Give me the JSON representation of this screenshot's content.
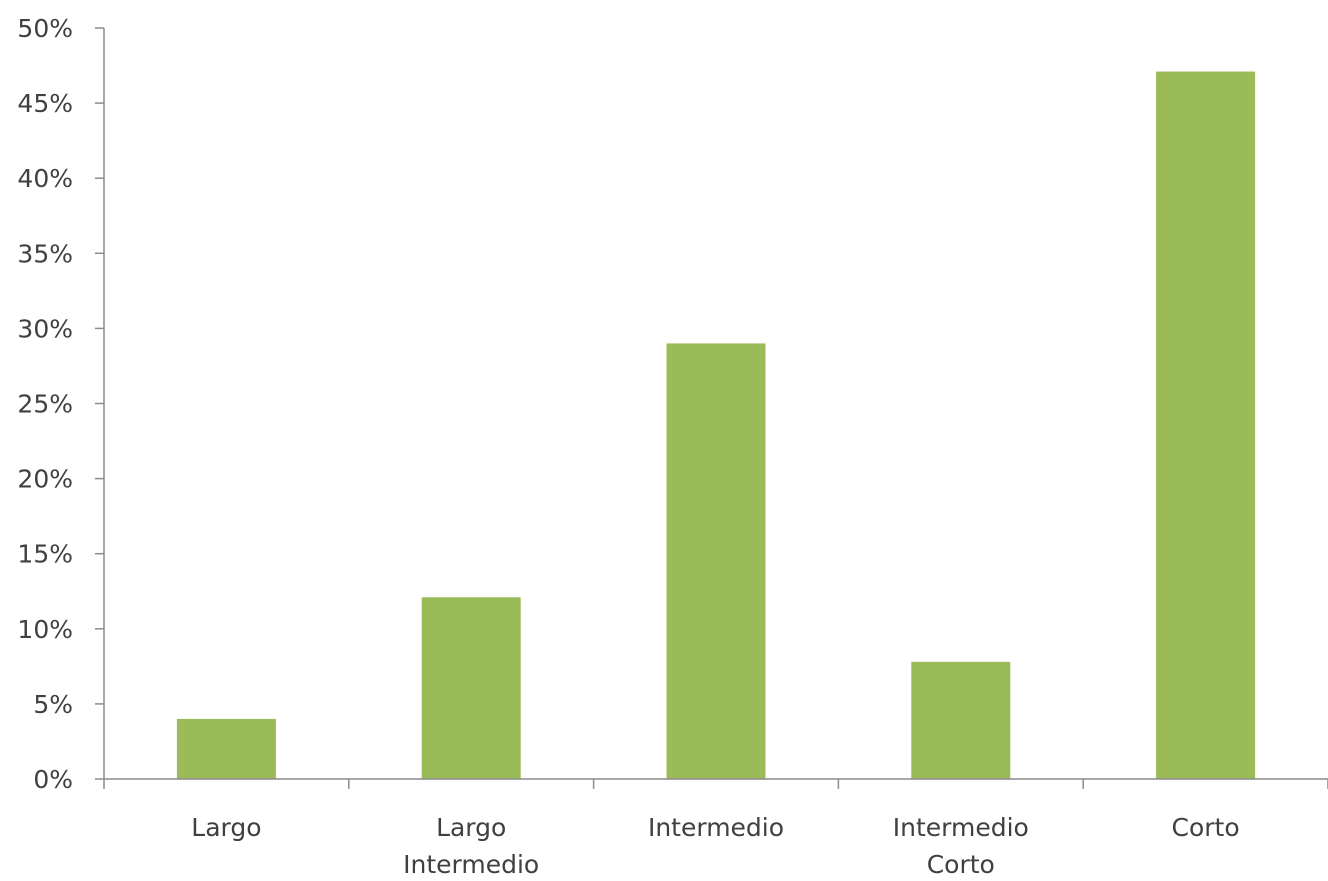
{
  "chart_data": {
    "type": "bar",
    "categories": [
      [
        "Largo"
      ],
      [
        "Largo",
        "Intermedio"
      ],
      [
        "Intermedio"
      ],
      [
        "Intermedio",
        "Corto"
      ],
      [
        "Corto"
      ]
    ],
    "values": [
      4,
      12.1,
      29,
      7.8,
      47.1
    ],
    "value_format": "percent",
    "yticks": [
      "0%",
      "5%",
      "10%",
      "15%",
      "20%",
      "25%",
      "30%",
      "35%",
      "40%",
      "45%",
      "50%"
    ],
    "ylim": [
      0,
      50
    ],
    "title": "",
    "xlabel": "",
    "ylabel": "",
    "grid": false,
    "legend": "none",
    "bar_color": "#9bbb59",
    "axis_color": "#8c8c8c",
    "text_color": "#404040"
  }
}
